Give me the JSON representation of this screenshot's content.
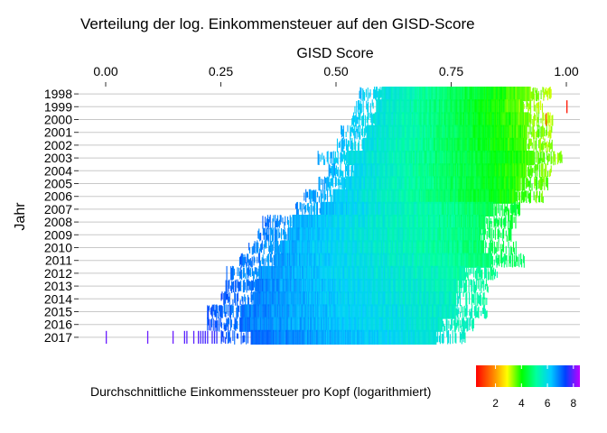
{
  "chart_data": {
    "type": "strip",
    "title": "Verteilung der log. Einkommensteuer auf den GISD-Score",
    "xlabel": "GISD Score",
    "ylabel": "Jahr",
    "x_axis_position": "top",
    "xlim": [
      -0.03,
      1.03
    ],
    "x_ticks": [
      0.0,
      0.25,
      0.5,
      0.75,
      1.0
    ],
    "x_tick_labels": [
      "0.00",
      "0.25",
      "0.50",
      "0.75",
      "1.00"
    ],
    "grid": "horizontal",
    "categories": [
      "1998",
      "1999",
      "2000",
      "2001",
      "2002",
      "2003",
      "2004",
      "2005",
      "2006",
      "2007",
      "2008",
      "2009",
      "2010",
      "2011",
      "2012",
      "2013",
      "2014",
      "2015",
      "2016",
      "2017"
    ],
    "color_scale": {
      "title": "Durchschnittliche Einkommenssteuer pro Kopf (logarithmiert)",
      "palette": "rainbow",
      "range": [
        0.5,
        8.5
      ],
      "ticks": [
        2,
        4,
        6,
        8
      ],
      "tick_labels": [
        "2",
        "4",
        "6",
        "8"
      ],
      "legend_position": "bottom-right"
    },
    "series": [
      {
        "year": "1998",
        "gisd_min": 0.55,
        "gisd_max": 0.97,
        "income_at_min": 6.4,
        "income_at_max": 3.2
      },
      {
        "year": "1999",
        "gisd_min": 0.54,
        "gisd_max": 0.95,
        "income_at_min": 6.4,
        "income_at_max": 3.2,
        "outliers": [
          {
            "gisd": 1.0,
            "income": 0.7
          }
        ]
      },
      {
        "year": "2000",
        "gisd_min": 0.53,
        "gisd_max": 0.97,
        "income_at_min": 6.4,
        "income_at_max": 3.2,
        "outliers": [
          {
            "gisd": 0.955,
            "income": 1.2
          }
        ]
      },
      {
        "year": "2001",
        "gisd_min": 0.51,
        "gisd_max": 0.97,
        "income_at_min": 6.5,
        "income_at_max": 3.3
      },
      {
        "year": "2002",
        "gisd_min": 0.5,
        "gisd_max": 0.97,
        "income_at_min": 6.5,
        "income_at_max": 3.3
      },
      {
        "year": "2003",
        "gisd_min": 0.46,
        "gisd_max": 0.99,
        "income_at_min": 6.6,
        "income_at_max": 3.4
      },
      {
        "year": "2004",
        "gisd_min": 0.48,
        "gisd_max": 0.97,
        "income_at_min": 6.6,
        "income_at_max": 3.4
      },
      {
        "year": "2005",
        "gisd_min": 0.46,
        "gisd_max": 0.96,
        "income_at_min": 6.7,
        "income_at_max": 3.5
      },
      {
        "year": "2006",
        "gisd_min": 0.43,
        "gisd_max": 0.95,
        "income_at_min": 6.8,
        "income_at_max": 3.6
      },
      {
        "year": "2007",
        "gisd_min": 0.41,
        "gisd_max": 0.9,
        "income_at_min": 6.9,
        "income_at_max": 4.3
      },
      {
        "year": "2008",
        "gisd_min": 0.34,
        "gisd_max": 0.89,
        "income_at_min": 7.0,
        "income_at_max": 4.4
      },
      {
        "year": "2009",
        "gisd_min": 0.33,
        "gisd_max": 0.88,
        "income_at_min": 7.0,
        "income_at_max": 4.5
      },
      {
        "year": "2010",
        "gisd_min": 0.31,
        "gisd_max": 0.89,
        "income_at_min": 7.0,
        "income_at_max": 4.5
      },
      {
        "year": "2011",
        "gisd_min": 0.29,
        "gisd_max": 0.91,
        "income_at_min": 7.1,
        "income_at_max": 4.6
      },
      {
        "year": "2012",
        "gisd_min": 0.26,
        "gisd_max": 0.85,
        "income_at_min": 7.1,
        "income_at_max": 5.0
      },
      {
        "year": "2013",
        "gisd_min": 0.26,
        "gisd_max": 0.83,
        "income_at_min": 7.2,
        "income_at_max": 5.1
      },
      {
        "year": "2014",
        "gisd_min": 0.25,
        "gisd_max": 0.83,
        "income_at_min": 7.2,
        "income_at_max": 5.2
      },
      {
        "year": "2015",
        "gisd_min": 0.22,
        "gisd_max": 0.83,
        "income_at_min": 7.3,
        "income_at_max": 5.3
      },
      {
        "year": "2016",
        "gisd_min": 0.22,
        "gisd_max": 0.8,
        "income_at_min": 7.3,
        "income_at_max": 5.4
      },
      {
        "year": "2017",
        "gisd_min": 0.25,
        "gisd_max": 0.78,
        "income_at_min": 7.4,
        "income_at_max": 5.6,
        "outliers": [
          {
            "gisd": 0.0,
            "income": 8.0
          },
          {
            "gisd": 0.09,
            "income": 8.0
          },
          {
            "gisd": 0.145,
            "income": 8.0
          },
          {
            "gisd": 0.17,
            "income": 7.9
          },
          {
            "gisd": 0.175,
            "income": 7.9
          },
          {
            "gisd": 0.19,
            "income": 7.9
          },
          {
            "gisd": 0.2,
            "income": 7.9
          },
          {
            "gisd": 0.205,
            "income": 7.8
          },
          {
            "gisd": 0.21,
            "income": 7.8
          },
          {
            "gisd": 0.215,
            "income": 7.8
          },
          {
            "gisd": 0.22,
            "income": 7.8
          },
          {
            "gisd": 0.23,
            "income": 7.8
          },
          {
            "gisd": 0.235,
            "income": 7.7
          },
          {
            "gisd": 0.24,
            "income": 7.7
          }
        ]
      }
    ]
  }
}
